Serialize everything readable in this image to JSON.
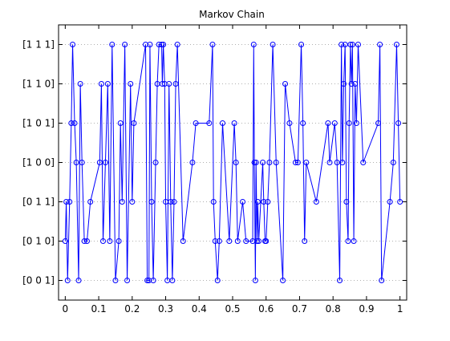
{
  "chart_data": {
    "type": "line",
    "title": "Markov Chain",
    "xlabel": "",
    "ylabel": "",
    "xlim": [
      -0.02,
      1.02
    ],
    "xticks": [
      0,
      0.1,
      0.2,
      0.3,
      0.4,
      0.5,
      0.6,
      0.7,
      0.8,
      0.9,
      1
    ],
    "xtick_labels": [
      "0",
      "0.1",
      "0.2",
      "0.3",
      "0.4",
      "0.5",
      "0.6",
      "0.7",
      "0.8",
      "0.9",
      "1"
    ],
    "ylim": [
      0.5,
      7.5
    ],
    "yticks": [
      1,
      2,
      3,
      4,
      5,
      6,
      7
    ],
    "ytick_labels": [
      "[0  0  1]",
      "[0  1  0]",
      "[0  1  1]",
      "[1  0  0]",
      "[1  0  1]",
      "[1  1  0]",
      "[1  1  1]"
    ],
    "grid": "y-dotted",
    "marker": "circle",
    "line_color": "#0000ff",
    "series": [
      {
        "x": [
          0.0,
          0.003,
          0.007,
          0.013,
          0.018,
          0.022,
          0.028,
          0.033,
          0.04,
          0.045,
          0.05,
          0.057,
          0.065,
          0.075,
          0.103,
          0.108,
          0.113,
          0.12,
          0.127,
          0.133,
          0.14,
          0.15,
          0.16,
          0.165,
          0.17,
          0.178,
          0.185,
          0.195,
          0.2,
          0.205,
          0.24,
          0.245,
          0.25,
          0.253,
          0.258,
          0.263,
          0.27,
          0.275,
          0.28,
          0.288,
          0.29,
          0.293,
          0.297,
          0.3,
          0.305,
          0.31,
          0.315,
          0.32,
          0.325,
          0.33,
          0.335,
          0.352,
          0.38,
          0.39,
          0.43,
          0.44,
          0.443,
          0.448,
          0.455,
          0.46,
          0.47,
          0.49,
          0.505,
          0.51,
          0.515,
          0.53,
          0.54,
          0.56,
          0.563,
          0.565,
          0.568,
          0.57,
          0.573,
          0.575,
          0.578,
          0.59,
          0.593,
          0.597,
          0.6,
          0.605,
          0.61,
          0.62,
          0.63,
          0.65,
          0.657,
          0.67,
          0.688,
          0.695,
          0.705,
          0.71,
          0.715,
          0.72,
          0.75,
          0.785,
          0.79,
          0.805,
          0.812,
          0.82,
          0.825,
          0.828,
          0.832,
          0.836,
          0.84,
          0.845,
          0.848,
          0.852,
          0.855,
          0.858,
          0.862,
          0.866,
          0.87,
          0.875,
          0.89,
          0.935,
          0.94,
          0.945,
          0.97,
          0.98,
          0.99,
          0.995,
          1.0
        ],
        "y": [
          2,
          3,
          1,
          3,
          5,
          7,
          5,
          4,
          1,
          6,
          4,
          2,
          2,
          3,
          4,
          6,
          2,
          4,
          6,
          2,
          7,
          1,
          2,
          5,
          3,
          7,
          1,
          6,
          3,
          5,
          7,
          1,
          1,
          7,
          3,
          1,
          4,
          6,
          7,
          7,
          6,
          7,
          6,
          3,
          1,
          6,
          3,
          1,
          3,
          6,
          7,
          2,
          4,
          5,
          5,
          7,
          3,
          2,
          1,
          2,
          5,
          2,
          5,
          4,
          2,
          3,
          2,
          2,
          7,
          4,
          1,
          4,
          2,
          3,
          2,
          4,
          3,
          2,
          2,
          3,
          4,
          7,
          4,
          1,
          6,
          5,
          4,
          4,
          7,
          5,
          2,
          4,
          3,
          5,
          4,
          5,
          4,
          1,
          7,
          4,
          6,
          7,
          3,
          2,
          5,
          7,
          6,
          7,
          2,
          6,
          5,
          7,
          4,
          5,
          7,
          1,
          3,
          4,
          7,
          5,
          3
        ]
      }
    ]
  }
}
